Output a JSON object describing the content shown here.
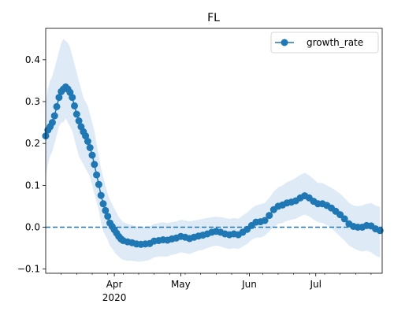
{
  "chart_data": {
    "type": "line",
    "title": "FL",
    "xlabel": "",
    "ylabel": "",
    "x_axis": {
      "type": "date",
      "range": [
        "2020-03-01",
        "2020-07-31"
      ],
      "major_ticks": [
        {
          "date": "2020-04-01",
          "label": "Apr",
          "sublabel": "2020"
        },
        {
          "date": "2020-05-01",
          "label": "May",
          "sublabel": ""
        },
        {
          "date": "2020-06-01",
          "label": "Jun",
          "sublabel": ""
        },
        {
          "date": "2020-07-01",
          "label": "Jul",
          "sublabel": ""
        }
      ],
      "minor_ticks": [
        "2020-03-08",
        "2020-03-15",
        "2020-03-22",
        "2020-03-29",
        "2020-04-05",
        "2020-04-12",
        "2020-04-19",
        "2020-04-26",
        "2020-05-03",
        "2020-05-10",
        "2020-05-17",
        "2020-05-24",
        "2020-05-31",
        "2020-06-07",
        "2020-06-14",
        "2020-06-21",
        "2020-06-28",
        "2020-07-05",
        "2020-07-12",
        "2020-07-19",
        "2020-07-26"
      ]
    },
    "y_axis": {
      "range": [
        -0.11,
        0.475
      ],
      "ticks": [
        -0.1,
        0.0,
        0.1,
        0.2,
        0.3,
        0.4
      ],
      "tick_labels": [
        "−0.1",
        "0.0",
        "0.1",
        "0.2",
        "0.3",
        "0.4"
      ]
    },
    "grid": false,
    "legend": {
      "position": "top-right",
      "entries": [
        "growth_rate"
      ]
    },
    "reference_line": {
      "y": 0.0,
      "style": "dashed",
      "color": "#1f77b4"
    },
    "series": [
      {
        "name": "growth_rate",
        "color": "#1f77b4",
        "marker": "circle",
        "band_color": "#deebf7",
        "points": [
          {
            "x": "2020-03-01",
            "y": 0.218,
            "lower": 0.12,
            "upper": 0.3
          },
          {
            "x": "2020-03-02",
            "y": 0.232,
            "lower": 0.15,
            "upper": 0.33
          },
          {
            "x": "2020-03-03",
            "y": 0.24,
            "lower": 0.17,
            "upper": 0.35
          },
          {
            "x": "2020-03-04",
            "y": 0.25,
            "lower": 0.18,
            "upper": 0.36
          },
          {
            "x": "2020-03-05",
            "y": 0.266,
            "lower": 0.2,
            "upper": 0.38
          },
          {
            "x": "2020-03-06",
            "y": 0.288,
            "lower": 0.22,
            "upper": 0.4
          },
          {
            "x": "2020-03-07",
            "y": 0.31,
            "lower": 0.24,
            "upper": 0.42
          },
          {
            "x": "2020-03-08",
            "y": 0.324,
            "lower": 0.25,
            "upper": 0.44
          },
          {
            "x": "2020-03-09",
            "y": 0.33,
            "lower": 0.25,
            "upper": 0.45
          },
          {
            "x": "2020-03-10",
            "y": 0.335,
            "lower": 0.26,
            "upper": 0.445
          },
          {
            "x": "2020-03-11",
            "y": 0.33,
            "lower": 0.25,
            "upper": 0.44
          },
          {
            "x": "2020-03-12",
            "y": 0.322,
            "lower": 0.24,
            "upper": 0.43
          },
          {
            "x": "2020-03-13",
            "y": 0.31,
            "lower": 0.23,
            "upper": 0.41
          },
          {
            "x": "2020-03-14",
            "y": 0.29,
            "lower": 0.21,
            "upper": 0.39
          },
          {
            "x": "2020-03-15",
            "y": 0.27,
            "lower": 0.19,
            "upper": 0.37
          },
          {
            "x": "2020-03-16",
            "y": 0.254,
            "lower": 0.17,
            "upper": 0.35
          },
          {
            "x": "2020-03-17",
            "y": 0.24,
            "lower": 0.16,
            "upper": 0.33
          },
          {
            "x": "2020-03-18",
            "y": 0.228,
            "lower": 0.15,
            "upper": 0.31
          },
          {
            "x": "2020-03-19",
            "y": 0.218,
            "lower": 0.14,
            "upper": 0.3
          },
          {
            "x": "2020-03-20",
            "y": 0.205,
            "lower": 0.13,
            "upper": 0.29
          },
          {
            "x": "2020-03-21",
            "y": 0.19,
            "lower": 0.12,
            "upper": 0.27
          },
          {
            "x": "2020-03-22",
            "y": 0.172,
            "lower": 0.1,
            "upper": 0.25
          },
          {
            "x": "2020-03-23",
            "y": 0.15,
            "lower": 0.08,
            "upper": 0.23
          },
          {
            "x": "2020-03-24",
            "y": 0.125,
            "lower": 0.06,
            "upper": 0.2
          },
          {
            "x": "2020-03-25",
            "y": 0.102,
            "lower": 0.04,
            "upper": 0.17
          },
          {
            "x": "2020-03-26",
            "y": 0.076,
            "lower": 0.01,
            "upper": 0.14
          },
          {
            "x": "2020-03-27",
            "y": 0.056,
            "lower": -0.01,
            "upper": 0.12
          },
          {
            "x": "2020-03-28",
            "y": 0.04,
            "lower": -0.02,
            "upper": 0.1
          },
          {
            "x": "2020-03-29",
            "y": 0.026,
            "lower": -0.03,
            "upper": 0.08
          },
          {
            "x": "2020-03-30",
            "y": 0.01,
            "lower": -0.045,
            "upper": 0.065
          },
          {
            "x": "2020-03-31",
            "y": 0.002,
            "lower": -0.05,
            "upper": 0.055
          },
          {
            "x": "2020-04-01",
            "y": -0.006,
            "lower": -0.06,
            "upper": 0.045
          },
          {
            "x": "2020-04-02",
            "y": -0.014,
            "lower": -0.065,
            "upper": 0.035
          },
          {
            "x": "2020-04-03",
            "y": -0.022,
            "lower": -0.07,
            "upper": 0.025
          },
          {
            "x": "2020-04-04",
            "y": -0.028,
            "lower": -0.075,
            "upper": 0.018
          },
          {
            "x": "2020-04-05",
            "y": -0.032,
            "lower": -0.078,
            "upper": 0.012
          },
          {
            "x": "2020-04-07",
            "y": -0.035,
            "lower": -0.08,
            "upper": 0.008
          },
          {
            "x": "2020-04-09",
            "y": -0.037,
            "lower": -0.08,
            "upper": 0.005
          },
          {
            "x": "2020-04-11",
            "y": -0.04,
            "lower": -0.082,
            "upper": 0.002
          },
          {
            "x": "2020-04-13",
            "y": -0.041,
            "lower": -0.082,
            "upper": 0.0
          },
          {
            "x": "2020-04-15",
            "y": -0.04,
            "lower": -0.08,
            "upper": 0.001
          },
          {
            "x": "2020-04-17",
            "y": -0.039,
            "lower": -0.078,
            "upper": 0.002
          },
          {
            "x": "2020-04-19",
            "y": -0.033,
            "lower": -0.072,
            "upper": 0.008
          },
          {
            "x": "2020-04-21",
            "y": -0.032,
            "lower": -0.07,
            "upper": 0.01
          },
          {
            "x": "2020-04-23",
            "y": -0.03,
            "lower": -0.07,
            "upper": 0.012
          },
          {
            "x": "2020-04-25",
            "y": -0.031,
            "lower": -0.07,
            "upper": 0.01
          },
          {
            "x": "2020-04-27",
            "y": -0.028,
            "lower": -0.066,
            "upper": 0.012
          },
          {
            "x": "2020-04-29",
            "y": -0.026,
            "lower": -0.064,
            "upper": 0.014
          },
          {
            "x": "2020-05-01",
            "y": -0.022,
            "lower": -0.06,
            "upper": 0.018
          },
          {
            "x": "2020-05-03",
            "y": -0.024,
            "lower": -0.062,
            "upper": 0.016
          },
          {
            "x": "2020-05-05",
            "y": -0.027,
            "lower": -0.064,
            "upper": 0.014
          },
          {
            "x": "2020-05-07",
            "y": -0.024,
            "lower": -0.06,
            "upper": 0.016
          },
          {
            "x": "2020-05-09",
            "y": -0.021,
            "lower": -0.056,
            "upper": 0.018
          },
          {
            "x": "2020-05-11",
            "y": -0.019,
            "lower": -0.054,
            "upper": 0.02
          },
          {
            "x": "2020-05-13",
            "y": -0.016,
            "lower": -0.05,
            "upper": 0.022
          },
          {
            "x": "2020-05-15",
            "y": -0.012,
            "lower": -0.046,
            "upper": 0.024
          },
          {
            "x": "2020-05-17",
            "y": -0.01,
            "lower": -0.044,
            "upper": 0.025
          },
          {
            "x": "2020-05-19",
            "y": -0.012,
            "lower": -0.046,
            "upper": 0.024
          },
          {
            "x": "2020-05-21",
            "y": -0.016,
            "lower": -0.05,
            "upper": 0.022
          },
          {
            "x": "2020-05-23",
            "y": -0.018,
            "lower": -0.052,
            "upper": 0.02
          },
          {
            "x": "2020-05-25",
            "y": -0.016,
            "lower": -0.05,
            "upper": 0.022
          },
          {
            "x": "2020-05-27",
            "y": -0.018,
            "lower": -0.052,
            "upper": 0.02
          },
          {
            "x": "2020-05-29",
            "y": -0.012,
            "lower": -0.046,
            "upper": 0.028
          },
          {
            "x": "2020-05-31",
            "y": -0.005,
            "lower": -0.04,
            "upper": 0.035
          },
          {
            "x": "2020-06-02",
            "y": 0.004,
            "lower": -0.03,
            "upper": 0.045
          },
          {
            "x": "2020-06-04",
            "y": 0.012,
            "lower": -0.025,
            "upper": 0.052
          },
          {
            "x": "2020-06-06",
            "y": 0.013,
            "lower": -0.025,
            "upper": 0.055
          },
          {
            "x": "2020-06-08",
            "y": 0.016,
            "lower": -0.02,
            "upper": 0.058
          },
          {
            "x": "2020-06-10",
            "y": 0.028,
            "lower": -0.01,
            "upper": 0.07
          },
          {
            "x": "2020-06-12",
            "y": 0.042,
            "lower": 0.0,
            "upper": 0.085
          },
          {
            "x": "2020-06-14",
            "y": 0.05,
            "lower": 0.008,
            "upper": 0.095
          },
          {
            "x": "2020-06-16",
            "y": 0.053,
            "lower": 0.01,
            "upper": 0.1
          },
          {
            "x": "2020-06-18",
            "y": 0.058,
            "lower": 0.015,
            "upper": 0.108
          },
          {
            "x": "2020-06-20",
            "y": 0.06,
            "lower": 0.018,
            "upper": 0.112
          },
          {
            "x": "2020-06-22",
            "y": 0.063,
            "lower": 0.02,
            "upper": 0.118
          },
          {
            "x": "2020-06-24",
            "y": 0.07,
            "lower": 0.026,
            "upper": 0.125
          },
          {
            "x": "2020-06-26",
            "y": 0.075,
            "lower": 0.03,
            "upper": 0.13
          },
          {
            "x": "2020-06-28",
            "y": 0.07,
            "lower": 0.026,
            "upper": 0.124
          },
          {
            "x": "2020-06-30",
            "y": 0.062,
            "lower": 0.018,
            "upper": 0.115
          },
          {
            "x": "2020-07-02",
            "y": 0.056,
            "lower": 0.012,
            "upper": 0.106
          },
          {
            "x": "2020-07-04",
            "y": 0.056,
            "lower": 0.01,
            "upper": 0.106
          },
          {
            "x": "2020-07-06",
            "y": 0.052,
            "lower": 0.005,
            "upper": 0.1
          },
          {
            "x": "2020-07-08",
            "y": 0.046,
            "lower": -0.002,
            "upper": 0.094
          },
          {
            "x": "2020-07-10",
            "y": 0.038,
            "lower": -0.012,
            "upper": 0.088
          },
          {
            "x": "2020-07-12",
            "y": 0.03,
            "lower": -0.022,
            "upper": 0.08
          },
          {
            "x": "2020-07-14",
            "y": 0.02,
            "lower": -0.032,
            "upper": 0.07
          },
          {
            "x": "2020-07-16",
            "y": 0.008,
            "lower": -0.044,
            "upper": 0.058
          },
          {
            "x": "2020-07-18",
            "y": 0.002,
            "lower": -0.05,
            "upper": 0.052
          },
          {
            "x": "2020-07-20",
            "y": 0.0,
            "lower": -0.055,
            "upper": 0.05
          },
          {
            "x": "2020-07-22",
            "y": 0.0,
            "lower": -0.058,
            "upper": 0.052
          },
          {
            "x": "2020-07-24",
            "y": 0.004,
            "lower": -0.056,
            "upper": 0.056
          },
          {
            "x": "2020-07-26",
            "y": 0.003,
            "lower": -0.06,
            "upper": 0.058
          },
          {
            "x": "2020-07-28",
            "y": -0.004,
            "lower": -0.068,
            "upper": 0.052
          },
          {
            "x": "2020-07-30",
            "y": -0.008,
            "lower": -0.072,
            "upper": 0.048
          }
        ]
      }
    ]
  }
}
